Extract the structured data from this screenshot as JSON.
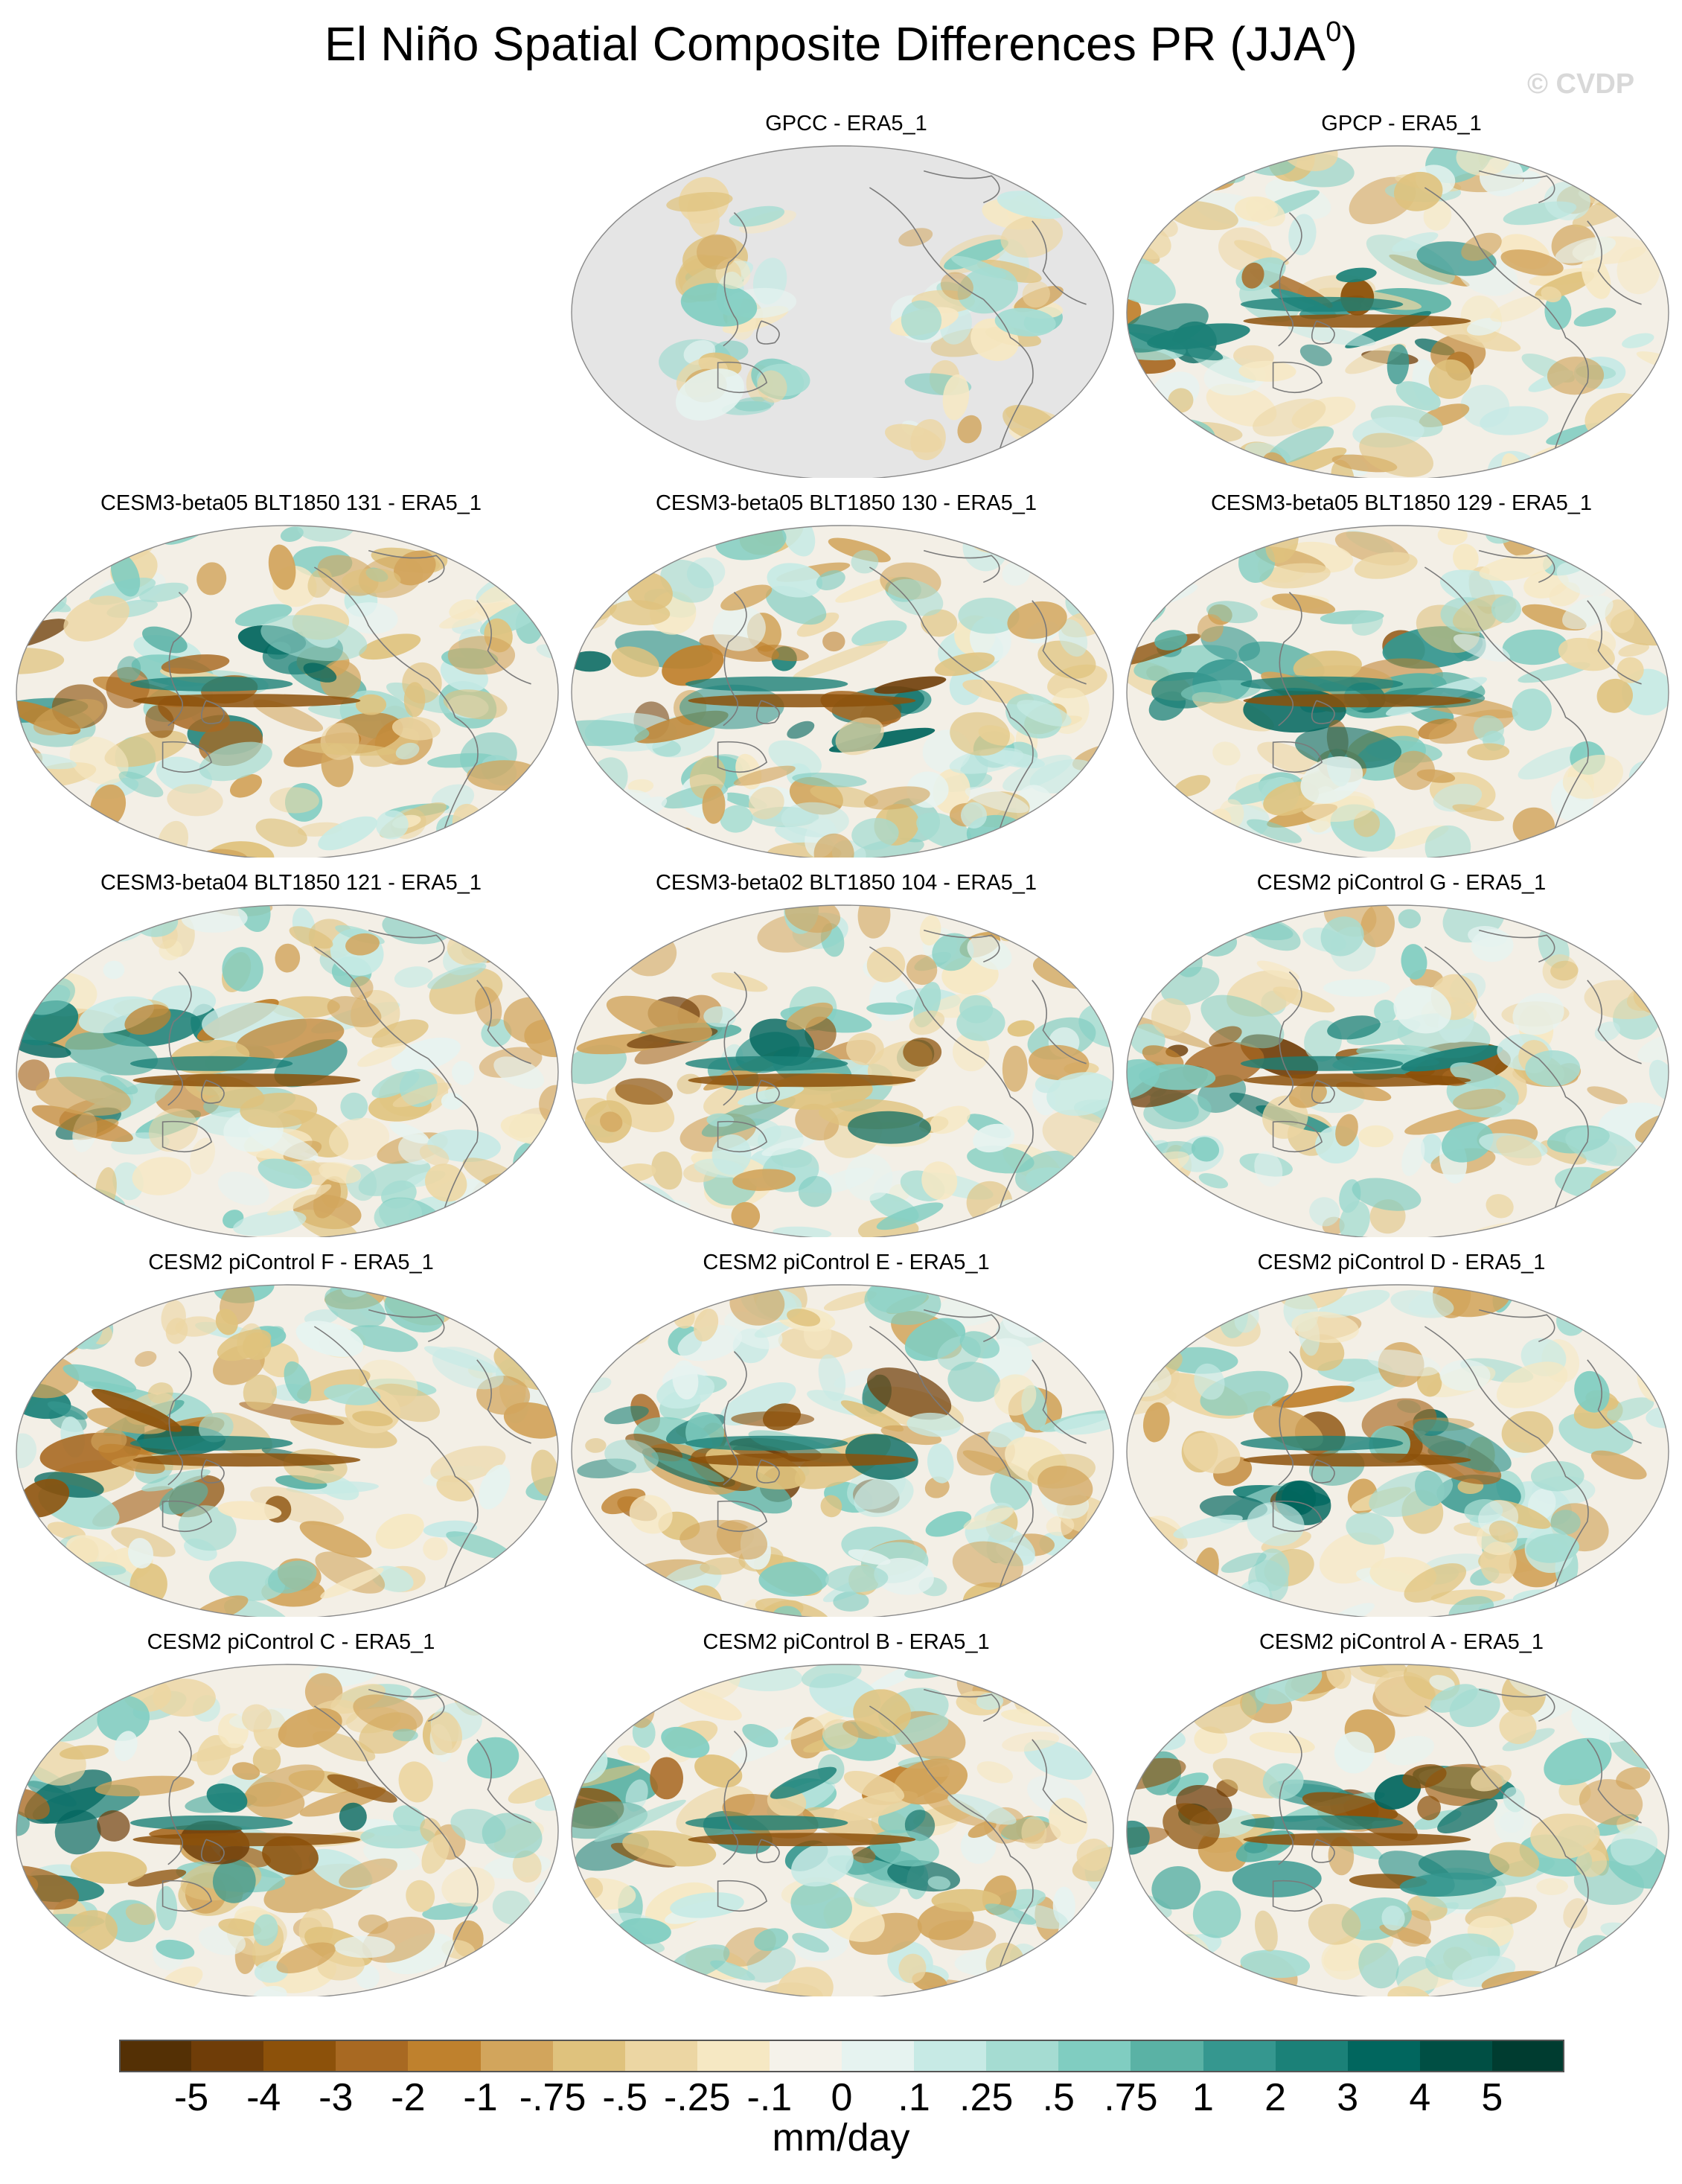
{
  "title": "El Niño Spatial Composite Differences PR (JJA",
  "title_superscript": "0",
  "title_suffix": ")",
  "watermark": "© CVDP",
  "panels": [
    {
      "label": "GPCC - ERA5_1",
      "row": 0,
      "col": 1,
      "land_masked": true
    },
    {
      "label": "GPCP - ERA5_1",
      "row": 0,
      "col": 2,
      "land_masked": false
    },
    {
      "label": "CESM3-beta05 BLT1850 131 - ERA5_1",
      "row": 1,
      "col": 0,
      "land_masked": false
    },
    {
      "label": "CESM3-beta05 BLT1850 130 - ERA5_1",
      "row": 1,
      "col": 1,
      "land_masked": false
    },
    {
      "label": "CESM3-beta05 BLT1850 129 - ERA5_1",
      "row": 1,
      "col": 2,
      "land_masked": false
    },
    {
      "label": "CESM3-beta04 BLT1850 121 - ERA5_1",
      "row": 2,
      "col": 0,
      "land_masked": false
    },
    {
      "label": "CESM3-beta02 BLT1850 104 - ERA5_1",
      "row": 2,
      "col": 1,
      "land_masked": false
    },
    {
      "label": "CESM2 piControl G - ERA5_1",
      "row": 2,
      "col": 2,
      "land_masked": false
    },
    {
      "label": "CESM2 piControl F - ERA5_1",
      "row": 3,
      "col": 0,
      "land_masked": false
    },
    {
      "label": "CESM2 piControl E - ERA5_1",
      "row": 3,
      "col": 1,
      "land_masked": false
    },
    {
      "label": "CESM2 piControl D - ERA5_1",
      "row": 3,
      "col": 2,
      "land_masked": false
    },
    {
      "label": "CESM2 piControl C - ERA5_1",
      "row": 4,
      "col": 0,
      "land_masked": false
    },
    {
      "label": "CESM2 piControl B - ERA5_1",
      "row": 4,
      "col": 1,
      "land_masked": false
    },
    {
      "label": "CESM2 piControl A - ERA5_1",
      "row": 4,
      "col": 2,
      "land_masked": false
    }
  ],
  "colorbar": {
    "units": "mm/day",
    "tick_labels": [
      "-5",
      "-4",
      "-3",
      "-2",
      "-1",
      "-.75",
      "-.5",
      "-.25",
      "-.1",
      "0",
      ".1",
      ".25",
      ".5",
      ".75",
      "1",
      "2",
      "3",
      "4",
      "5"
    ],
    "colors": [
      "#543005",
      "#6f3d08",
      "#8c510a",
      "#a86922",
      "#bf812d",
      "#d2a55c",
      "#dfc27d",
      "#ecd6a3",
      "#f6e8c3",
      "#f5f2ea",
      "#e6f3f0",
      "#c7eae5",
      "#a5dcd2",
      "#80cdc1",
      "#5ab2a5",
      "#35978f",
      "#1b8178",
      "#01665e",
      "#004f44",
      "#003c30"
    ]
  },
  "map_colors": {
    "ocean_neutral": "#f3efe6",
    "masked": "#e5e5e5",
    "coastline": "#7a7a7a",
    "outline": "#8a8a8a"
  }
}
